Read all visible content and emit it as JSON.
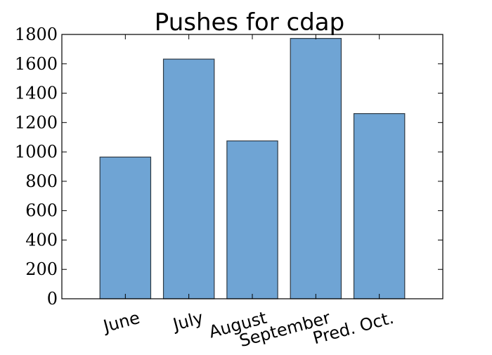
{
  "chart_data": {
    "type": "bar",
    "title": "Pushes for cdap",
    "categories": [
      "June",
      "July",
      "August",
      "September",
      "Pred. Oct."
    ],
    "values": [
      965,
      1632,
      1075,
      1773,
      1261
    ],
    "xlabel": "",
    "ylabel": "",
    "ylim": [
      0,
      1800
    ],
    "yticks": [
      0,
      200,
      400,
      600,
      800,
      1000,
      1200,
      1400,
      1600,
      1800
    ],
    "grid": false,
    "x_tick_rotation_deg": 15,
    "colors": {
      "bar_fill": "#6fa4d4",
      "bar_edge": "#2f3a44",
      "axis": "#000000"
    }
  }
}
